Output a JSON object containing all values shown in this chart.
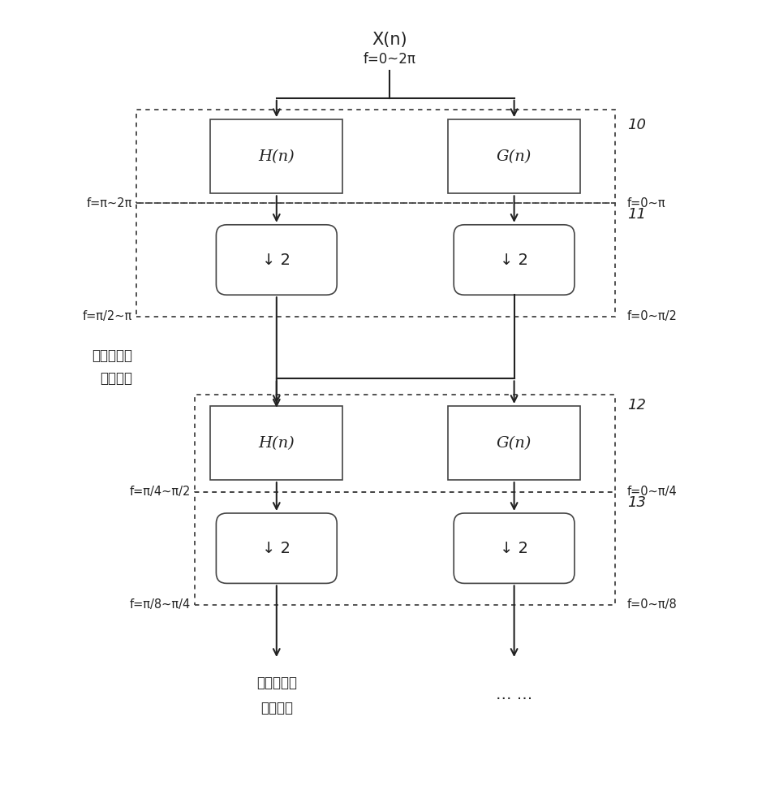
{
  "bg_color": "#ffffff",
  "box_edge_color": "#444444",
  "text_color": "#222222",
  "arrow_color": "#222222",
  "label_10": "10",
  "label_11": "11",
  "label_12": "12",
  "label_13": "13",
  "Xn_label": "X(n)",
  "f_top": "f=0~2π",
  "f_left1": "f=π~2π",
  "f_right1": "f=0~π",
  "f_left2": "f=π/2~π",
  "f_right2": "f=0~π/2",
  "f_left3": "f=π/4~π/2",
  "f_right3": "f=0~π/4",
  "f_left4": "f=π/8~π/4",
  "f_right4": "f=0~π/8",
  "chinese1_line1": "第一层小波",
  "chinese1_line2": "变换系数",
  "chinese2_line1": "第二层小波",
  "chinese2_line2": "变换系数",
  "dots": "… …",
  "Hn_label": "H(n)",
  "Gn_label": "G(n)",
  "down2_label": "↓ 2"
}
